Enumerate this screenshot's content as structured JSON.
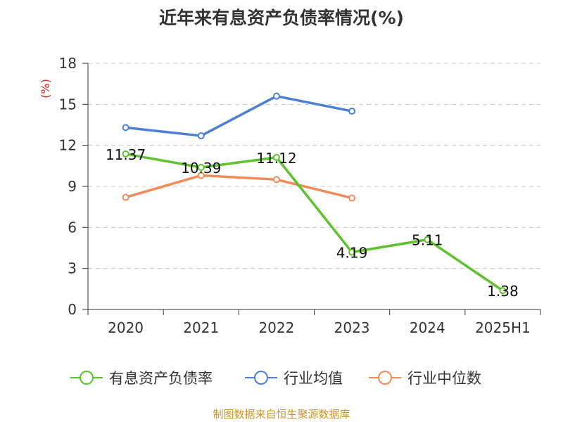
{
  "chart_data": {
    "type": "line",
    "title": "近年来有息资产负债率情况(%)",
    "unit": "(%)",
    "categories": [
      "2020",
      "2021",
      "2022",
      "2023",
      "2024",
      "2025H1"
    ],
    "ylim": [
      0,
      18
    ],
    "yticks": [
      "0",
      "3",
      "6",
      "9",
      "12",
      "15",
      "18"
    ],
    "grid": true,
    "legend_position": "bottom",
    "series": [
      {
        "name": "有息资产负债率",
        "color": "#5ec22c",
        "values": [
          11.37,
          10.39,
          11.12,
          4.19,
          5.11,
          1.38
        ],
        "labels": [
          "11.37",
          "10.39",
          "11.12",
          "4.19",
          "5.11",
          "1.38"
        ]
      },
      {
        "name": "行业均值",
        "color": "#4d7fd6",
        "values": [
          13.3,
          12.7,
          15.6,
          14.5,
          null,
          null
        ]
      },
      {
        "name": "行业中位数",
        "color": "#f08c5a",
        "values": [
          8.2,
          9.8,
          9.5,
          8.15,
          null,
          null
        ]
      }
    ]
  },
  "source": "制图数据来自恒生聚源数据库"
}
